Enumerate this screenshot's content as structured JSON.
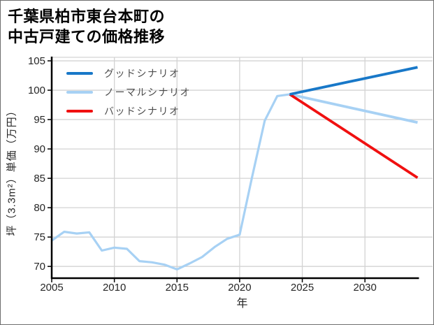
{
  "header": {
    "title_line1": "千葉県柏市東台本町の",
    "title_line2": "中古戸建ての価格推移"
  },
  "chart_data": {
    "type": "line",
    "title": "千葉県柏市東台本町の中古戸建ての価格推移",
    "xlabel": "年",
    "ylabel": "坪（3.3m²）単価（万円）",
    "xlim": [
      2005,
      2035.4
    ],
    "ylim": [
      68,
      105.6
    ],
    "x_ticks": [
      2005,
      2010,
      2015,
      2020,
      2025,
      2030
    ],
    "y_ticks": [
      70,
      75,
      80,
      85,
      90,
      95,
      100,
      105
    ],
    "grid": true,
    "grid_color": "#d3d3d3",
    "axis_color": "#000000",
    "tick_label_color": "#262626",
    "legend_position": "top-left",
    "history": {
      "color": "#a7d1f4",
      "x": [
        2005,
        2006,
        2007,
        2008,
        2009,
        2010,
        2011,
        2012,
        2013,
        2014,
        2015,
        2016,
        2017,
        2018,
        2019,
        2020,
        2021,
        2022,
        2023,
        2024
      ],
      "y": [
        74.4,
        75.9,
        75.6,
        75.8,
        72.7,
        73.2,
        73.0,
        70.9,
        70.7,
        70.3,
        69.5,
        70.5,
        71.6,
        73.3,
        74.7,
        75.4,
        85.3,
        94.8,
        99.0,
        99.3
      ]
    },
    "series": [
      {
        "name": "グッドシナリオ",
        "color": "#1878c8",
        "x": [
          2024,
          2034.2
        ],
        "y": [
          99.3,
          103.9
        ]
      },
      {
        "name": "ノーマルシナリオ",
        "color": "#a7d1f4",
        "x": [
          2024,
          2034.2
        ],
        "y": [
          99.3,
          94.5
        ]
      },
      {
        "name": "バッドシナリオ",
        "color": "#f01010",
        "x": [
          2024,
          2034.2
        ],
        "y": [
          99.3,
          85.1
        ]
      }
    ]
  }
}
